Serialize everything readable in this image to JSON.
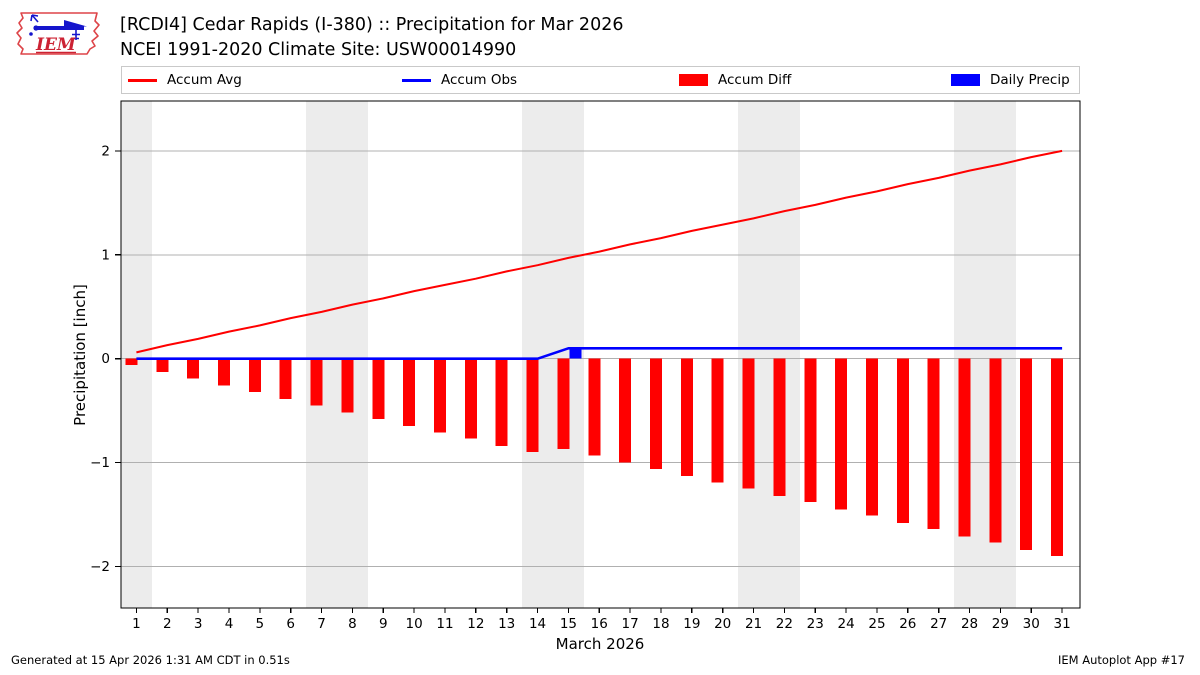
{
  "header": {
    "logo_text": "IEM",
    "title_line1": "[RCDI4] Cedar Rapids (I-380) :: Precipitation for Mar 2026",
    "title_line2": "NCEI 1991-2020 Climate Site: USW00014990"
  },
  "legend": [
    {
      "label": "Accum Avg",
      "type": "line",
      "color": "#ff0000"
    },
    {
      "label": "Accum Obs",
      "type": "line",
      "color": "#0000ff"
    },
    {
      "label": "Accum Diff",
      "type": "patch",
      "color": "#ff0000"
    },
    {
      "label": "Daily Precip",
      "type": "patch",
      "color": "#0000ff"
    }
  ],
  "chart_data": {
    "type": "combo",
    "title": "[RCDI4] Cedar Rapids (I-380) :: Precipitation for Mar 2026",
    "subtitle": "NCEI 1991-2020 Climate Site: USW00014990",
    "xlabel": "March 2026",
    "ylabel": "Precipitation [inch]",
    "x": [
      1,
      2,
      3,
      4,
      5,
      6,
      7,
      8,
      9,
      10,
      11,
      12,
      13,
      14,
      15,
      16,
      17,
      18,
      19,
      20,
      21,
      22,
      23,
      24,
      25,
      26,
      27,
      28,
      29,
      30,
      31
    ],
    "xlim": [
      0.5,
      31.58
    ],
    "ylim": [
      -2.4,
      2.48
    ],
    "yticks": [
      -2,
      -1,
      0,
      1,
      2
    ],
    "grid": true,
    "legend_position": "top",
    "weekend_bands": [
      [
        0.5,
        1.5
      ],
      [
        6.5,
        8.5
      ],
      [
        13.5,
        15.5
      ],
      [
        20.5,
        22.5
      ],
      [
        27.5,
        29.5
      ]
    ],
    "series": [
      {
        "name": "Accum Avg",
        "type": "line",
        "color": "#ff0000",
        "width": 2,
        "values": [
          0.06,
          0.13,
          0.19,
          0.26,
          0.32,
          0.39,
          0.45,
          0.52,
          0.58,
          0.65,
          0.71,
          0.77,
          0.84,
          0.9,
          0.97,
          1.03,
          1.1,
          1.16,
          1.23,
          1.29,
          1.35,
          1.42,
          1.48,
          1.55,
          1.61,
          1.68,
          1.74,
          1.81,
          1.87,
          1.94,
          2.0
        ]
      },
      {
        "name": "Accum Obs",
        "type": "line",
        "color": "#0000ff",
        "width": 2.6,
        "values": [
          0,
          0,
          0,
          0,
          0,
          0,
          0,
          0,
          0,
          0,
          0,
          0,
          0,
          0,
          0.1,
          0.1,
          0.1,
          0.1,
          0.1,
          0.1,
          0.1,
          0.1,
          0.1,
          0.1,
          0.1,
          0.1,
          0.1,
          0.1,
          0.1,
          0.1,
          0.1
        ]
      },
      {
        "name": "Accum Diff",
        "type": "bar",
        "color": "#ff0000",
        "values": [
          -0.06,
          -0.13,
          -0.19,
          -0.26,
          -0.32,
          -0.39,
          -0.45,
          -0.52,
          -0.58,
          -0.65,
          -0.71,
          -0.77,
          -0.84,
          -0.9,
          -0.87,
          -0.93,
          -1.0,
          -1.06,
          -1.13,
          -1.19,
          -1.25,
          -1.32,
          -1.38,
          -1.45,
          -1.51,
          -1.58,
          -1.64,
          -1.71,
          -1.77,
          -1.84,
          -1.9
        ]
      },
      {
        "name": "Daily Precip",
        "type": "bar",
        "color": "#0000ff",
        "values": [
          0,
          0,
          0,
          0,
          0,
          0,
          0,
          0,
          0,
          0,
          0,
          0,
          0,
          0,
          0.1,
          0,
          0,
          0,
          0,
          0,
          0,
          0,
          0,
          0,
          0,
          0,
          0,
          0,
          0,
          0,
          0
        ]
      }
    ],
    "colors": {
      "weekend_band": "#ececec",
      "grid": "#b0b0b0",
      "frame": "#000000"
    }
  },
  "footer": {
    "generated": "Generated at 15 Apr 2026 1:31 AM CDT in 0.51s",
    "app": "IEM Autoplot App #17"
  }
}
